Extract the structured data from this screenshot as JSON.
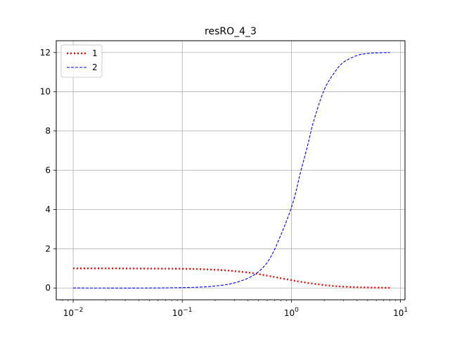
{
  "chart_data": {
    "type": "line",
    "title": "resRO_4_3",
    "xlabel": "",
    "ylabel": "",
    "xscale": "log",
    "xlim": [
      0.007,
      11
    ],
    "ylim": [
      -0.6,
      12.6
    ],
    "grid": true,
    "legend": {
      "placement": "top-left"
    },
    "x_ticks": [
      {
        "value": 0.01,
        "base": "10",
        "exp": "−2"
      },
      {
        "value": 0.1,
        "base": "10",
        "exp": "−1"
      },
      {
        "value": 1,
        "base": "10",
        "exp": "0"
      },
      {
        "value": 10,
        "base": "10",
        "exp": "1"
      }
    ],
    "y_ticks": [
      0,
      2,
      4,
      6,
      8,
      10,
      12
    ],
    "series": [
      {
        "name": "1",
        "color": "#ff0000",
        "style": "dotted",
        "x": [
          0.01,
          0.02,
          0.05,
          0.1,
          0.15,
          0.2,
          0.25,
          0.3,
          0.4,
          0.5,
          0.6,
          0.7,
          0.8,
          1.0,
          1.2,
          1.5,
          2.0,
          2.5,
          3.0,
          4.0,
          5.0,
          6.0,
          7.0,
          8.0
        ],
        "y": [
          1.0,
          1.0,
          0.99,
          0.98,
          0.96,
          0.93,
          0.9,
          0.86,
          0.79,
          0.71,
          0.63,
          0.56,
          0.5,
          0.4,
          0.32,
          0.24,
          0.15,
          0.1,
          0.07,
          0.04,
          0.03,
          0.02,
          0.015,
          0.01
        ]
      },
      {
        "name": "2",
        "color": "#0000ff",
        "style": "dashed",
        "x": [
          0.01,
          0.05,
          0.1,
          0.15,
          0.2,
          0.25,
          0.3,
          0.4,
          0.5,
          0.6,
          0.7,
          0.8,
          0.9,
          1.0,
          1.1,
          1.2,
          1.4,
          1.6,
          2.0,
          2.5,
          3.0,
          4.0,
          5.0,
          6.0,
          8.0
        ],
        "y": [
          0.0,
          0.0,
          0.02,
          0.05,
          0.1,
          0.17,
          0.26,
          0.5,
          0.83,
          1.3,
          1.95,
          2.7,
          3.4,
          4.1,
          4.9,
          5.8,
          7.2,
          8.5,
          10.1,
          11.0,
          11.5,
          11.85,
          11.95,
          11.98,
          12.0
        ]
      }
    ]
  }
}
